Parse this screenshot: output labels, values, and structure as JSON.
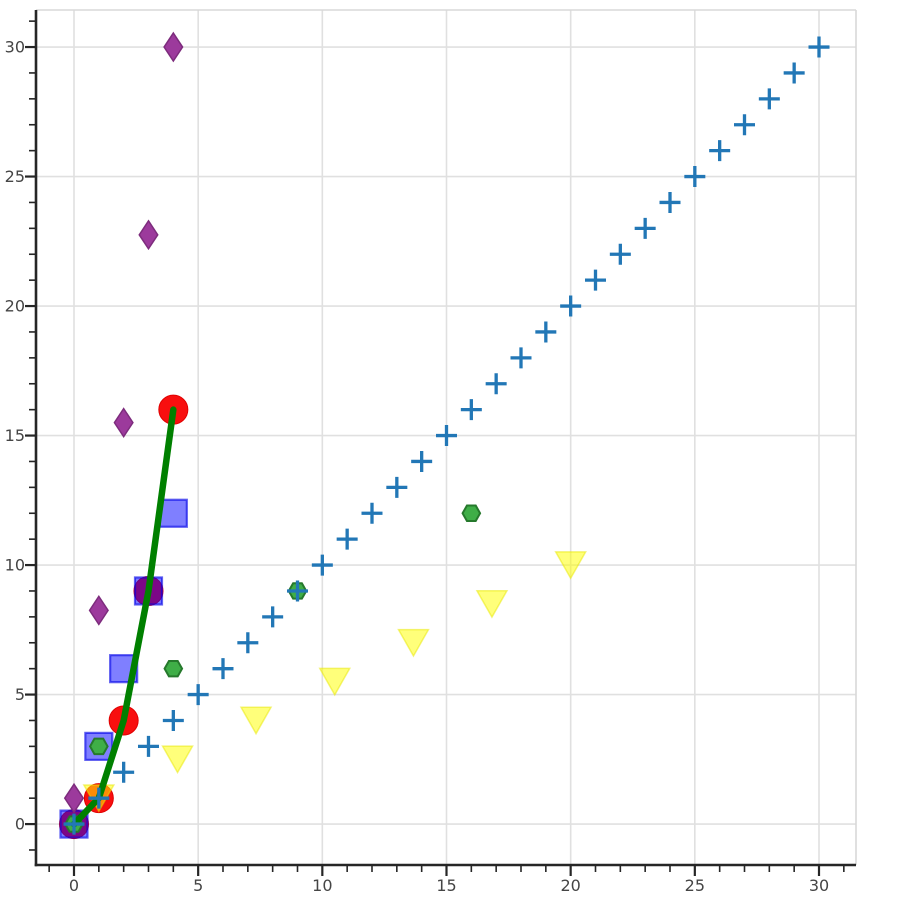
{
  "figure": {
    "background": "#ffffff",
    "grid_color": "#e0e0e0",
    "spine_light_color": "#d8d8d8",
    "spine_dark_color": "#262626",
    "tick_color": "#262626",
    "tick_label_color": "#454545"
  },
  "chart_data": {
    "type": "scatter",
    "title": "",
    "xlabel": "",
    "ylabel": "",
    "legend": "none",
    "grid": "major-both",
    "xlim": [
      -1.53,
      31.49
    ],
    "ylim": [
      -1.58,
      31.43
    ],
    "x_ticks": [
      0,
      5,
      10,
      15,
      20,
      25,
      30
    ],
    "y_ticks": [
      0,
      5,
      10,
      15,
      20,
      25,
      30
    ],
    "x_tick_labels": [
      "0",
      "5",
      "10",
      "15",
      "20",
      "25",
      "30"
    ],
    "y_tick_labels": [
      "0",
      "5",
      "10",
      "15",
      "20",
      "25",
      "30"
    ],
    "minor_tick_step": 1,
    "minor_tick_range": [
      -1,
      31
    ],
    "series": [
      {
        "id": "red-circles",
        "note": "y = x squared",
        "marker": "circle",
        "x": [
          0,
          1,
          2,
          3,
          4
        ],
        "y": [
          0,
          1,
          4,
          9,
          16
        ],
        "style": {
          "fill": "#f80f0f",
          "fill_opacity": 1,
          "stroke": "#e00000",
          "stroke_opacity": 1,
          "stroke_width": 1,
          "size": 29
        }
      },
      {
        "id": "blue-squares",
        "note": "y = 3x",
        "marker": "square",
        "x": [
          0,
          1,
          2,
          3,
          4
        ],
        "y": [
          0,
          3,
          6,
          9,
          12
        ],
        "style": {
          "fill": "#0000ff",
          "fill_opacity": 0.5,
          "stroke": "#0000e6",
          "stroke_opacity": 0.62,
          "stroke_width": 2.2,
          "size": 27
        }
      },
      {
        "id": "yellow-triangles",
        "note": "x = linspace(1,20,7), y = linspace(1,10,7)",
        "marker": "triangle-down",
        "x": [
          1,
          4.17,
          7.33,
          10.5,
          13.67,
          16.83,
          20
        ],
        "y": [
          1,
          2.5,
          4,
          5.5,
          7,
          8.5,
          10
        ],
        "style": {
          "fill": "#ffff00",
          "fill_opacity": 0.52,
          "stroke": "#e8e800",
          "stroke_opacity": 0.5,
          "stroke_width": 1.5,
          "size": 30
        }
      },
      {
        "id": "green-hexagons",
        "note": "x = k squared, y = 3k",
        "marker": "hexagon",
        "x": [
          0,
          1,
          4,
          9,
          16
        ],
        "y": [
          0,
          3,
          6,
          9,
          12
        ],
        "style": {
          "fill": "#3fae47",
          "fill_opacity": 1,
          "stroke": "#26792c",
          "stroke_opacity": 1,
          "stroke_width": 2,
          "size": 17.5
        }
      },
      {
        "id": "green-line",
        "note": "line through y = x squared",
        "marker": "none",
        "line": true,
        "x": [
          0,
          1,
          2,
          3,
          4
        ],
        "y": [
          0,
          1,
          4,
          9,
          16
        ],
        "style": {
          "stroke": "#008000",
          "stroke_opacity": 1,
          "stroke_width": 6.5
        }
      },
      {
        "id": "purple-diamonds",
        "note": "y = linspace(1,30,5)",
        "marker": "thin-diamond",
        "x": [
          0,
          1,
          2,
          3,
          4
        ],
        "y": [
          1,
          8.25,
          15.5,
          22.75,
          30
        ],
        "style": {
          "fill": "#9c3a9c",
          "fill_opacity": 1,
          "stroke": "#7d2c7d",
          "stroke_opacity": 1,
          "stroke_width": 1.5,
          "size": 28
        }
      },
      {
        "id": "blue-plus-identity",
        "note": "y = x",
        "marker": "plus",
        "x": [
          0,
          1,
          2,
          3,
          4,
          5,
          6,
          7,
          8,
          9,
          10,
          11,
          12,
          13,
          14,
          15,
          16,
          17,
          18,
          19,
          20,
          21,
          22,
          23,
          24,
          25,
          26,
          27,
          28,
          29,
          30
        ],
        "y": [
          0,
          1,
          2,
          3,
          4,
          5,
          6,
          7,
          8,
          9,
          10,
          11,
          12,
          13,
          14,
          15,
          16,
          17,
          18,
          19,
          20,
          21,
          22,
          23,
          24,
          25,
          26,
          27,
          28,
          29,
          30
        ],
        "style": {
          "stroke": "#2277b6",
          "stroke_opacity": 1,
          "stroke_width": 3.3,
          "size": 21
        }
      }
    ]
  }
}
